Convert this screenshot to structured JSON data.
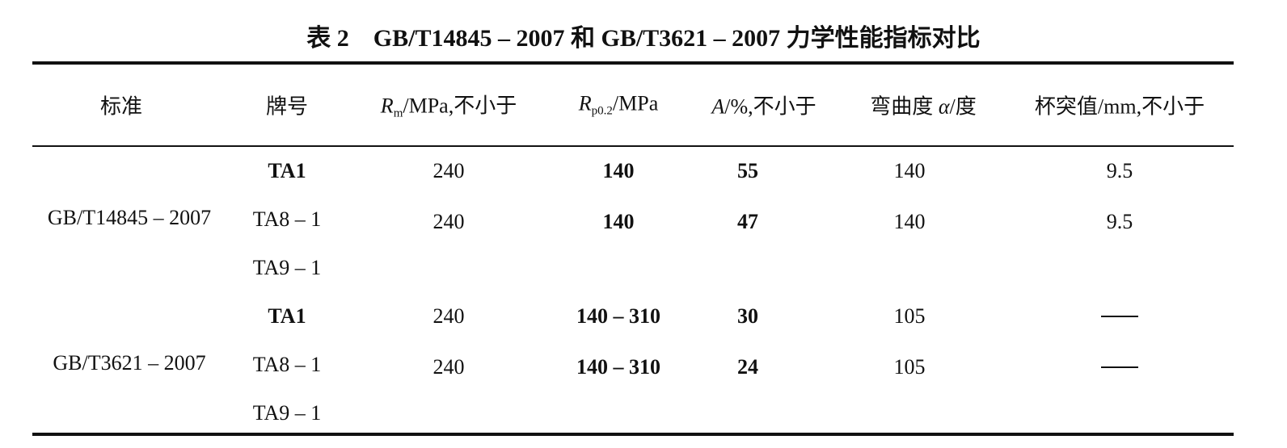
{
  "title": "表 2　GB/T14845 – 2007 和 GB/T3621 – 2007 力学性能指标对比",
  "headers": {
    "standard": "标准",
    "grade": "牌号",
    "rm_sym": "R",
    "rm_sub": "m",
    "rm_rest": "/MPa,不小于",
    "rp_sym": "R",
    "rp_sub": "p0.2",
    "rp_rest": "/MPa",
    "a_sym": "A",
    "a_rest": "/%,不小于",
    "bend_pre": "弯曲度 ",
    "bend_sym": "α",
    "bend_rest": "/度",
    "cup": "杯突值/mm,不小于"
  },
  "groups": [
    {
      "standard": "GB/T14845 – 2007",
      "grades": [
        "TA1",
        "TA8 – 1",
        "TA9 – 1"
      ],
      "rows": [
        {
          "rm": "240",
          "rp": "140",
          "a": "55",
          "bend": "140",
          "cup": "9.5"
        },
        {
          "rm": "240",
          "rp": "140",
          "a": "47",
          "bend": "140",
          "cup": "9.5"
        }
      ]
    },
    {
      "standard": "GB/T3621 – 2007",
      "grades": [
        "TA1",
        "TA8 – 1",
        "TA9 – 1"
      ],
      "rows": [
        {
          "rm": "240",
          "rp": "140 – 310",
          "a": "30",
          "bend": "105",
          "cup": "—"
        },
        {
          "rm": "240",
          "rp": "140 – 310",
          "a": "24",
          "bend": "105",
          "cup": "—"
        }
      ]
    }
  ]
}
